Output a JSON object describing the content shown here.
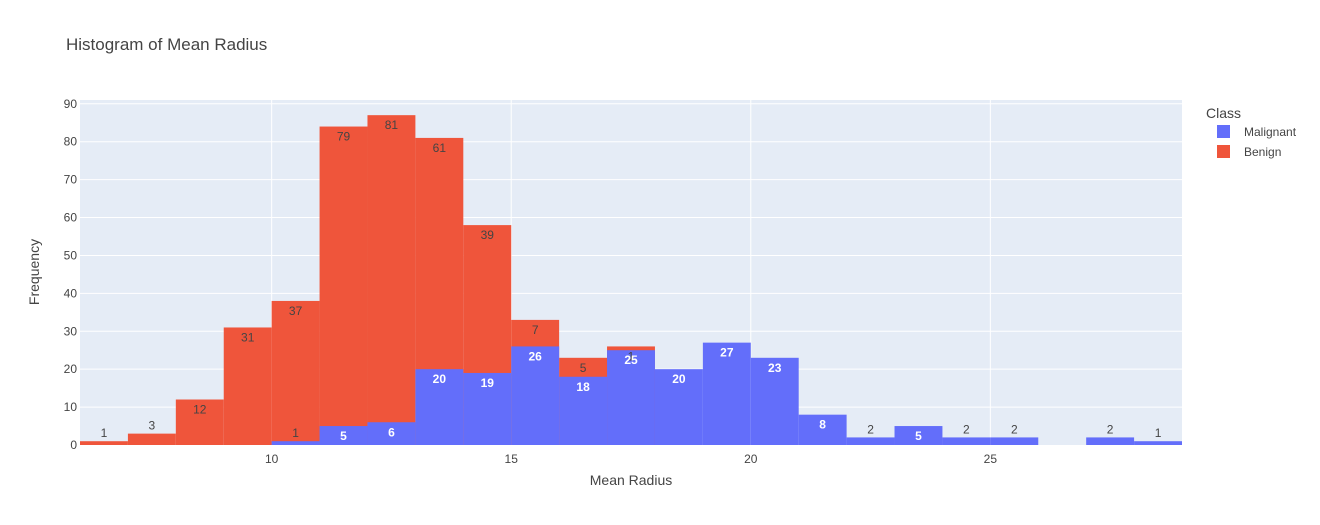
{
  "chart_data": {
    "type": "bar",
    "title": "Histogram of Mean Radius",
    "xlabel": "Mean Radius",
    "ylabel": "Frequency",
    "barmode": "overlay",
    "bin_start": 6,
    "bin_width": 1,
    "xlim": [
      6,
      29
    ],
    "ylim": [
      0,
      91
    ],
    "x_ticks": [
      10,
      15,
      20,
      25
    ],
    "y_ticks": [
      0,
      10,
      20,
      30,
      40,
      50,
      60,
      70,
      80,
      90
    ],
    "grid": true,
    "background": "#e5ecf6",
    "legend": {
      "title": "Class",
      "position": "top-right"
    },
    "series": [
      {
        "name": "Benign",
        "color": "#ef553b",
        "label_color": "#444444",
        "values": [
          1,
          3,
          12,
          31,
          37,
          79,
          81,
          61,
          39,
          7,
          5,
          1,
          0,
          0,
          0,
          0,
          0,
          0,
          0,
          0,
          0,
          0,
          0
        ],
        "bar_heights": [
          1,
          3,
          12,
          31,
          38,
          84,
          87,
          81,
          58,
          33,
          23,
          26,
          0,
          0,
          0,
          0,
          0,
          0,
          0,
          0,
          0,
          0,
          0
        ]
      },
      {
        "name": "Malignant",
        "color": "#636efa",
        "label_color": "#ffffff",
        "values": [
          0,
          0,
          0,
          0,
          1,
          5,
          6,
          20,
          19,
          26,
          18,
          25,
          20,
          27,
          23,
          8,
          2,
          5,
          2,
          2,
          0,
          2,
          1
        ]
      }
    ]
  }
}
